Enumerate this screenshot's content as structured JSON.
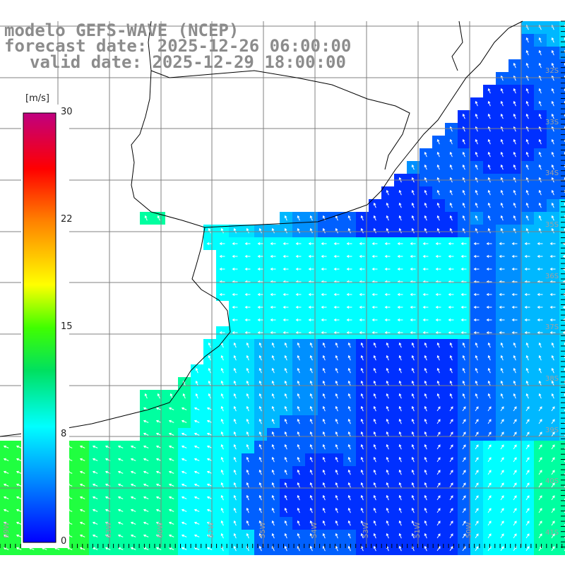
{
  "header": {
    "line1": "modelo GEFS-WAVE (NCEP)",
    "line2": "forecast date: 2025-12-26 06:00:00",
    "line3": "valid date: 2025-12-29 18:00:00"
  },
  "colorbar": {
    "unit": "[m/s]",
    "ticks": [
      "30",
      "22",
      "15",
      "8",
      "0"
    ],
    "colors": [
      "#0000ff",
      "#0090ff",
      "#00ffff",
      "#00ff40",
      "#ffff00",
      "#ff8000",
      "#ff0000",
      "#c00080"
    ]
  },
  "axes": {
    "lat_labels": [
      "32S",
      "33S",
      "34S",
      "35S",
      "36S",
      "37S",
      "38S",
      "39S",
      "40S",
      "41S"
    ],
    "lon_labels": [
      "69W",
      "66W",
      "63W",
      "60W",
      "57W",
      "55W",
      "54W",
      "53W",
      "51W",
      "50W"
    ]
  },
  "colors": {
    "land": "#ffffff",
    "coast": "#000000",
    "grid": "#808080",
    "arrows": "#ffffff"
  }
}
